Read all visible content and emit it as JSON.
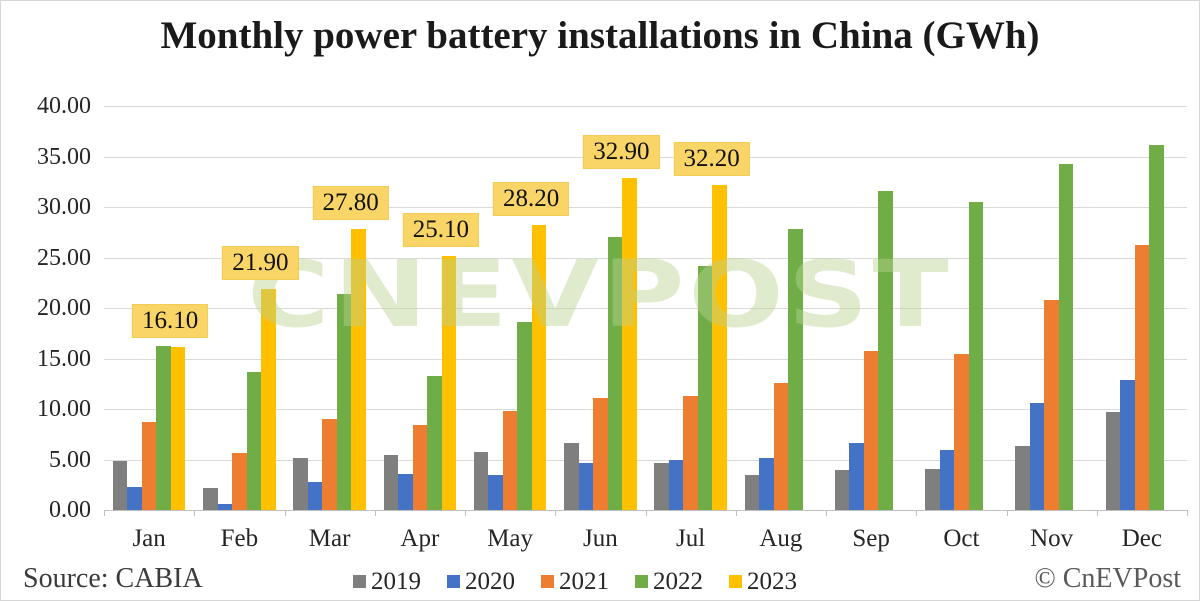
{
  "title": "Monthly power battery installations in China (GWh)",
  "source": "Source: CABIA",
  "copyright": "© CnEVPost",
  "watermark": "CNEVPOST",
  "colors": {
    "grid": "#d9d9d9",
    "axis": "#bfbfbf",
    "data_label_bg": "#f9d567",
    "watermark_green": "#b7d38d"
  },
  "chart_data": {
    "type": "bar",
    "title": "Monthly power battery installations in China (GWh)",
    "categories": [
      "Jan",
      "Feb",
      "Mar",
      "Apr",
      "May",
      "Jun",
      "Jul",
      "Aug",
      "Sep",
      "Oct",
      "Nov",
      "Dec"
    ],
    "series": [
      {
        "name": "2019",
        "color": "#7f7f7f",
        "values": [
          4.9,
          2.2,
          5.1,
          5.4,
          5.7,
          6.6,
          4.7,
          3.5,
          4.0,
          4.1,
          6.3,
          9.7
        ]
      },
      {
        "name": "2020",
        "color": "#4472c4",
        "values": [
          2.3,
          0.6,
          2.8,
          3.6,
          3.5,
          4.7,
          5.0,
          5.1,
          6.6,
          5.9,
          10.6,
          12.9
        ]
      },
      {
        "name": "2021",
        "color": "#ed7d31",
        "values": [
          8.7,
          5.6,
          9.0,
          8.4,
          9.8,
          11.1,
          11.3,
          12.6,
          15.7,
          15.4,
          20.8,
          26.2
        ]
      },
      {
        "name": "2022",
        "color": "#70ad47",
        "values": [
          16.2,
          13.7,
          21.4,
          13.3,
          18.6,
          27.0,
          24.2,
          27.8,
          31.6,
          30.5,
          34.3,
          36.1
        ]
      },
      {
        "name": "2023",
        "color": "#ffc000",
        "values": [
          16.1,
          21.9,
          27.8,
          25.1,
          28.2,
          32.9,
          32.2,
          null,
          null,
          null,
          null,
          null
        ],
        "data_labels": [
          "16.10",
          "21.90",
          "27.80",
          "25.10",
          "28.20",
          "32.90",
          "32.20"
        ]
      }
    ],
    "ylim": [
      0,
      40
    ],
    "ytick_step": 5,
    "ytick_labels": [
      "40.00",
      "35.00",
      "30.00",
      "25.00",
      "20.00",
      "15.00",
      "10.00",
      "5.00",
      "0.00"
    ],
    "grid": true,
    "legend_position": "bottom"
  }
}
